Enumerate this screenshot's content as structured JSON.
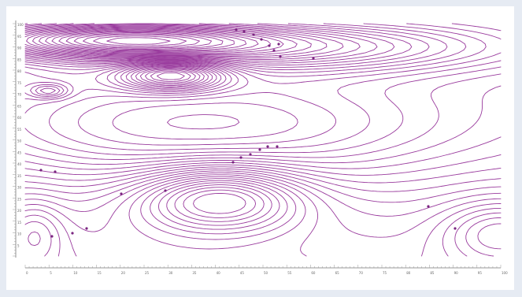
{
  "chart_data": {
    "type": "contour",
    "title": "",
    "xlabel": "",
    "ylabel": "",
    "xlim": [
      0,
      100
    ],
    "x_ticks": [
      "0",
      "5",
      "10",
      "15",
      "20",
      "25",
      "30",
      "35",
      "40",
      "45",
      "50",
      "55",
      "60",
      "65",
      "70",
      "75",
      "80",
      "85",
      "90",
      "95",
      "100"
    ],
    "y_ticks": [
      "100",
      "95",
      "90",
      "85",
      "80",
      "75",
      "70",
      "65",
      "60",
      "55",
      "50",
      "45",
      "40",
      "35",
      "30",
      "25",
      "20",
      "15",
      "10",
      "5"
    ],
    "grid": false,
    "line_color": "#9a3c9e",
    "background": "#e6ebf3",
    "plot_background": "#ffffff",
    "features": [
      {
        "kind": "ridge",
        "x": 15,
        "y": 95
      },
      {
        "kind": "closed-low",
        "x": 35,
        "y": 80
      },
      {
        "kind": "closed-low",
        "x": 44,
        "y": 25
      },
      {
        "kind": "closed-low",
        "x": 8,
        "y": 72
      },
      {
        "kind": "closed-low",
        "x": 98,
        "y": 10
      }
    ]
  }
}
